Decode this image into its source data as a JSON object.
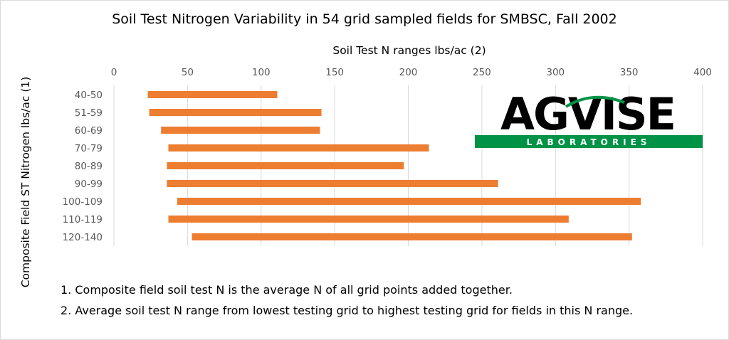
{
  "title": "Soil Test Nitrogen Variability in 54 grid sampled fields for SMBSC, Fall 2002",
  "x_axis_title": "Soil Test N ranges lbs/ac (2)",
  "y_axis_title": "Composite Field ST Nitrogen lbs/ac  (1)",
  "notes": [
    "1. Composite field soil test N is the average N of all grid points added together.",
    "2. Average soil test N range from lowest testing grid to highest testing grid for fields in this N range."
  ],
  "logo": {
    "name": "AGVISE",
    "subtitle": "LABORATORIES",
    "brand_color": "#009346",
    "text_color": "#000000"
  },
  "colors": {
    "bar": "#ED7D31",
    "grid": "#d9d9d9",
    "tick_text": "#595959"
  },
  "chart_data": {
    "type": "bar",
    "orientation": "horizontal-floating",
    "title": "Soil Test Nitrogen Variability in 54 grid sampled fields for SMBSC, Fall 2002",
    "xlabel": "Soil Test N ranges lbs/ac (2)",
    "ylabel": "Composite Field ST Nitrogen lbs/ac  (1)",
    "xlim": [
      0,
      400
    ],
    "x_ticks": [
      0,
      50,
      100,
      150,
      200,
      250,
      300,
      350,
      400
    ],
    "x_axis_position": "top",
    "grid": true,
    "categories": [
      "40-50",
      "51-59",
      "60-69",
      "70-79",
      "80-89",
      "90-99",
      "100-109",
      "110-119",
      "120-140"
    ],
    "ranges": [
      [
        23,
        111
      ],
      [
        24,
        141
      ],
      [
        32,
        140
      ],
      [
        37,
        214
      ],
      [
        36,
        197
      ],
      [
        36,
        261
      ],
      [
        43,
        358
      ],
      [
        37,
        309
      ],
      [
        53,
        352
      ]
    ]
  }
}
